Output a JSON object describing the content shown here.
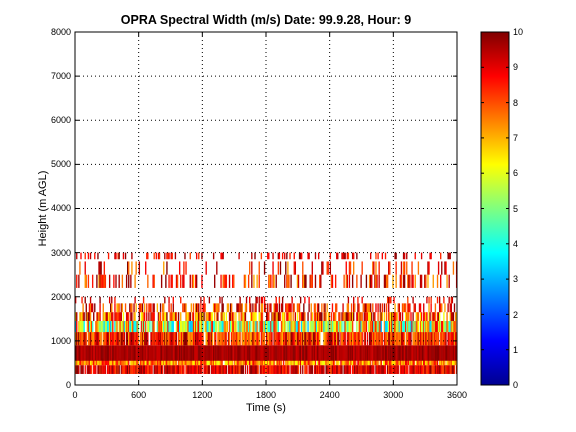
{
  "chart_data": {
    "type": "heatmap",
    "title": "OPRA Spectral Width (m/s)  Date: 99.9.28, Hour: 9",
    "xlabel": "Time (s)",
    "ylabel": "Height (m AGL)",
    "xlim": [
      0,
      3600
    ],
    "ylim": [
      0,
      8000
    ],
    "xticks": [
      "0",
      "600",
      "1200",
      "1800",
      "2400",
      "3000",
      "3600"
    ],
    "yticks": [
      "0",
      "1000",
      "2000",
      "3000",
      "4000",
      "5000",
      "6000",
      "7000",
      "8000"
    ],
    "grid": true,
    "colorbar": {
      "min": 0,
      "max": 10,
      "ticks": [
        "0",
        "1",
        "2",
        "3",
        "4",
        "5",
        "6",
        "7",
        "8",
        "9",
        "10"
      ],
      "colormap": "jet"
    },
    "layers": [
      {
        "height_range": [
          250,
          450
        ],
        "coverage": 0.95,
        "value_range": [
          8,
          10
        ]
      },
      {
        "height_range": [
          450,
          600
        ],
        "coverage": 0.95,
        "value_range": [
          6,
          9
        ]
      },
      {
        "height_range": [
          550,
          900
        ],
        "coverage": 1.0,
        "value_range": [
          9.2,
          10
        ]
      },
      {
        "height_range": [
          900,
          1200
        ],
        "coverage": 0.9,
        "value_range": [
          7,
          10
        ]
      },
      {
        "height_range": [
          1200,
          1450
        ],
        "coverage": 0.9,
        "value_range": [
          3,
          9
        ]
      },
      {
        "height_range": [
          1450,
          1650
        ],
        "coverage": 0.7,
        "value_range": [
          6,
          10
        ]
      },
      {
        "height_range": [
          1650,
          1850
        ],
        "coverage": 0.45,
        "value_range": [
          7,
          10
        ]
      },
      {
        "height_range": [
          1850,
          2000
        ],
        "coverage": 0.12,
        "value_range": [
          8,
          10
        ]
      },
      {
        "height_range": [
          2200,
          2500
        ],
        "coverage": 0.35,
        "value_range": [
          7,
          10
        ]
      },
      {
        "height_range": [
          2500,
          2800
        ],
        "coverage": 0.18,
        "value_range": [
          7,
          10
        ]
      },
      {
        "height_range": [
          2850,
          3000
        ],
        "coverage": 0.25,
        "value_range": [
          8,
          10
        ]
      }
    ]
  }
}
